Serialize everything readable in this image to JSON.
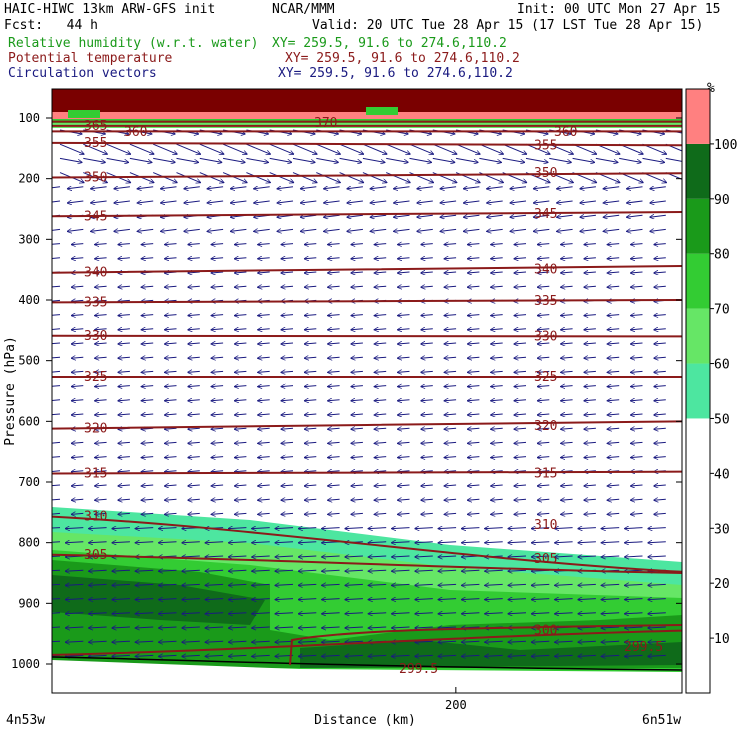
{
  "header": {
    "line1_left": "HAIC-HIWC 13km ARW-GFS init",
    "line1_mid": "NCAR/MMM",
    "line1_right": "Init: 00 UTC Mon 27 Apr 15",
    "fcst": "Fcst:   44 h",
    "valid": "Valid: 20 UTC Tue 28 Apr 15 (17 LST Tue 28 Apr 15)",
    "fields": [
      {
        "label": "Relative humidity (w.r.t. water)",
        "xy": "XY= 259.5, 91.6 to 274.6,110.2",
        "color": "#1a9a1a"
      },
      {
        "label": "Potential temperature",
        "xy": "XY= 259.5, 91.6 to 274.6,110.2",
        "color": "#8b1a1a"
      },
      {
        "label": "Circulation vectors",
        "xy": "XY= 259.5, 91.6 to 274.6,110.2",
        "color": "#1a1a80"
      }
    ]
  },
  "chart_data": {
    "type": "cross-section",
    "ylabel": "Pressure (hPa)",
    "xlabel": "Distance (km)",
    "x_left_label": "4n53w",
    "x_right_label": "6n51w",
    "x_ticks": [
      {
        "value": 200,
        "label": "200"
      }
    ],
    "xlim": [
      0,
      312
    ],
    "y_ticks": [
      100,
      200,
      300,
      400,
      500,
      600,
      700,
      800,
      900,
      1000
    ],
    "ylim": [
      1050,
      50
    ],
    "theta_contours": [
      {
        "label": "310",
        "y_left": 757,
        "y_right": 848
      },
      {
        "label": "315",
        "y_left": 686,
        "y_right": 683
      },
      {
        "label": "320",
        "y_left": 612,
        "y_right": 600
      },
      {
        "label": "325",
        "y_left": 527,
        "y_right": 527
      },
      {
        "label": "330",
        "y_left": 459,
        "y_right": 460
      },
      {
        "label": "335",
        "y_left": 404,
        "y_right": 400
      },
      {
        "label": "340",
        "y_left": 355,
        "y_right": 344
      },
      {
        "label": "345",
        "y_left": 262,
        "y_right": 255
      },
      {
        "label": "350",
        "y_left": 198,
        "y_right": 191
      },
      {
        "label": "355",
        "y_left": 141,
        "y_right": 145
      },
      {
        "label": "360",
        "y_left": 122,
        "y_right": 122
      },
      {
        "label": "365",
        "y_left": 113,
        "y_right": 113
      },
      {
        "label": "370",
        "y_left": 106,
        "y_right": 106
      },
      {
        "label": "305",
        "y_left": 820,
        "y_right": 850
      },
      {
        "label": "300",
        "y_left": 985,
        "y_right": 945
      }
    ],
    "contour_labels": [
      {
        "text": "365",
        "d": 20,
        "p": 113
      },
      {
        "text": "360",
        "d": 60,
        "p": 123
      },
      {
        "text": "370",
        "d": 250,
        "p": 108
      },
      {
        "text": "360",
        "d": 490,
        "p": 123
      },
      {
        "text": "355",
        "d": 20,
        "p": 141
      },
      {
        "text": "355",
        "d": 470,
        "p": 145
      },
      {
        "text": "350",
        "d": 20,
        "p": 198
      },
      {
        "text": "350",
        "d": 470,
        "p": 191
      },
      {
        "text": "345",
        "d": 20,
        "p": 262
      },
      {
        "text": "345",
        "d": 470,
        "p": 258
      },
      {
        "text": "340",
        "d": 20,
        "p": 355
      },
      {
        "text": "340",
        "d": 470,
        "p": 350
      },
      {
        "text": "335",
        "d": 20,
        "p": 404
      },
      {
        "text": "335",
        "d": 470,
        "p": 402
      },
      {
        "text": "330",
        "d": 20,
        "p": 459
      },
      {
        "text": "330",
        "d": 470,
        "p": 460
      },
      {
        "text": "325",
        "d": 20,
        "p": 527
      },
      {
        "text": "325",
        "d": 470,
        "p": 527
      },
      {
        "text": "320",
        "d": 20,
        "p": 612
      },
      {
        "text": "320",
        "d": 470,
        "p": 608
      },
      {
        "text": "315",
        "d": 20,
        "p": 686
      },
      {
        "text": "315",
        "d": 470,
        "p": 686
      },
      {
        "text": "310",
        "d": 20,
        "p": 757
      },
      {
        "text": "310",
        "d": 470,
        "p": 771
      },
      {
        "text": "305",
        "d": 20,
        "p": 820
      },
      {
        "text": "305",
        "d": 470,
        "p": 827
      },
      {
        "text": "300",
        "d": 470,
        "p": 945
      },
      {
        "text": "299.5",
        "d": 335,
        "p": 1008
      },
      {
        "text": "299.5",
        "d": 560,
        "p": 972
      }
    ],
    "colorbar": {
      "unit": "%",
      "levels": [
        10,
        20,
        30,
        40,
        50,
        60,
        70,
        80,
        90,
        100
      ],
      "colors": [
        "#ffffff",
        "#ffffff",
        "#ffffff",
        "#ffffff",
        "#ffffff",
        "#4de6a0",
        "#66e666",
        "#33cc33",
        "#1a9a1a",
        "#0f6b1a",
        "#ff8080"
      ]
    }
  }
}
